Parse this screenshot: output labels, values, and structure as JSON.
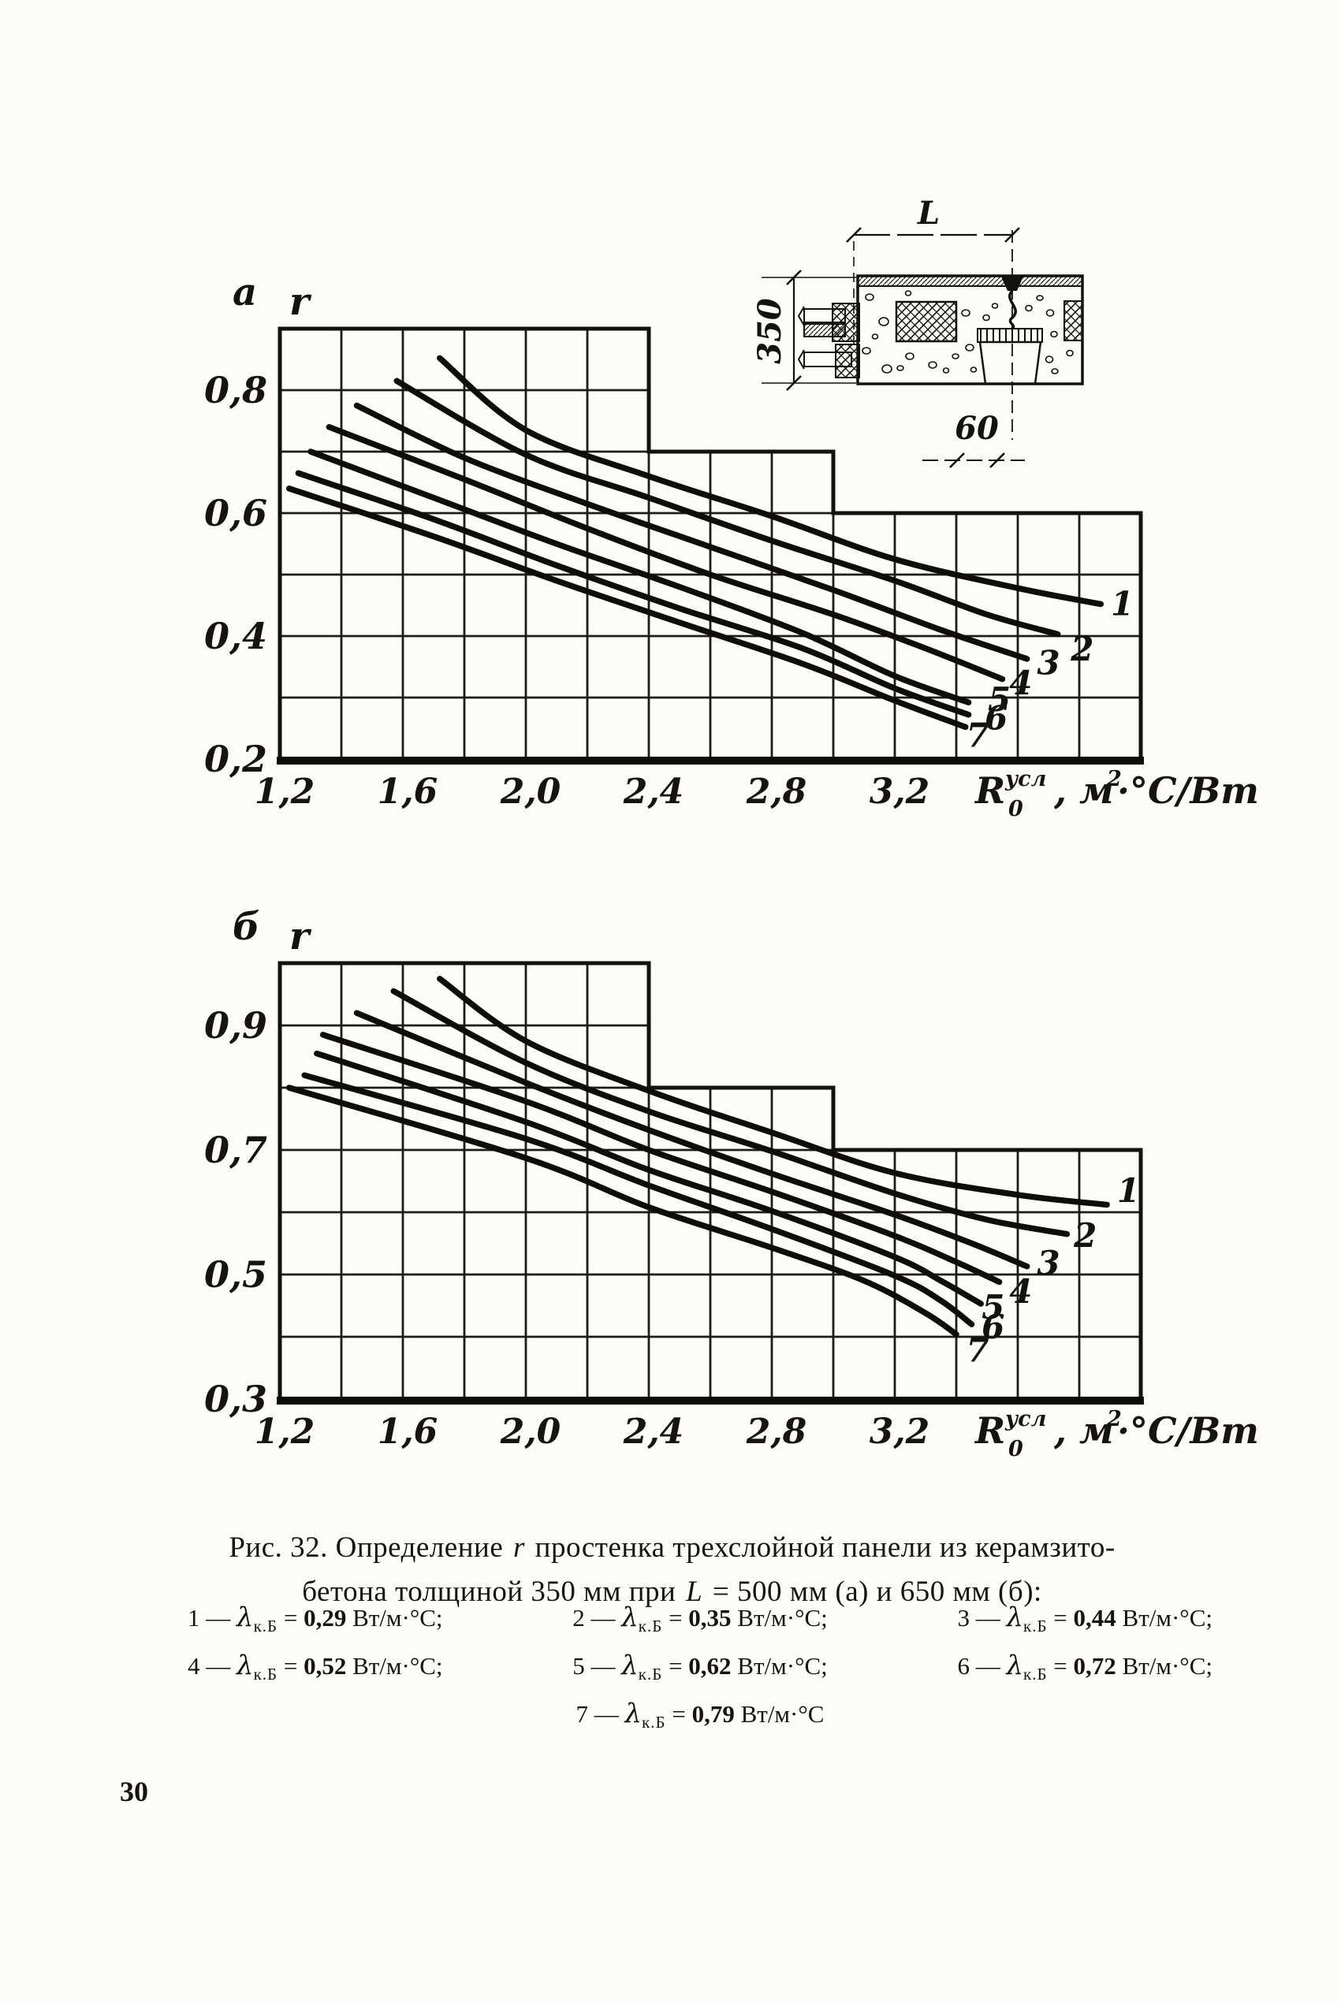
{
  "page_number": "30",
  "figure_caption": {
    "line1_prefix": "Рис. 32. Определение ",
    "line1_var": "r",
    "line1_suffix": " простенка трехслойной панели из керамзито-",
    "line2_prefix": "бетона толщиной 350 мм при ",
    "line2_var": "L",
    "line2_suffix": " = 500 мм (а) и 650 мм (б):"
  },
  "legend": {
    "lambda_symbol": "λ",
    "lambda_subscript": "к.Б",
    "equals": " = ",
    "dash": " — ",
    "items": [
      {
        "num": "1",
        "value": "0,29",
        "unit": "Вт/м·°С;"
      },
      {
        "num": "2",
        "value": "0,35",
        "unit": "Вт/м·°С;"
      },
      {
        "num": "3",
        "value": "0,44",
        "unit": "Вт/м·°С;"
      },
      {
        "num": "4",
        "value": "0,52",
        "unit": "Вт/м·°С;"
      },
      {
        "num": "5",
        "value": "0,62",
        "unit": "Вт/м·°С;"
      },
      {
        "num": "6",
        "value": "0,72",
        "unit": "Вт/м·°С;"
      },
      {
        "num": "7",
        "value": "0,79",
        "unit": "Вт/м·°С"
      }
    ],
    "rows": [
      [
        0,
        1,
        2
      ],
      [
        3,
        4,
        5
      ],
      [
        6
      ]
    ]
  },
  "detail_diagram": {
    "labels": {
      "span": "L",
      "height": "350",
      "joint_width": "60"
    }
  },
  "x_axis_title": {
    "symbol": "R",
    "sup": "усл",
    "sub": "0",
    "tail": ", м",
    "tail_sup": "2",
    "tail_end": "·°С/Вт",
    "plain": "R0усл, м2·°С/Вт"
  },
  "chart_data": [
    {
      "type": "line",
      "panel_label": "а",
      "ylabel": "r",
      "xlabel": "R0усл, м2·°С/Вт",
      "x_range": [
        1.2,
        4.0
      ],
      "x_grid_step": 0.2,
      "y_bottom": 0.2,
      "y_grid_step": 0.1,
      "outline_segments": [
        {
          "x_from": 1.2,
          "x_to": 2.4,
          "y_top": 0.9
        },
        {
          "x_from": 2.4,
          "x_to": 3.0,
          "y_top": 0.7
        },
        {
          "x_from": 3.0,
          "x_to": 4.0,
          "y_top": 0.6
        }
      ],
      "x_ticks": [
        {
          "v": 1.2,
          "label": "1,2"
        },
        {
          "v": 1.6,
          "label": "1,6"
        },
        {
          "v": 2.0,
          "label": "2,0"
        },
        {
          "v": 2.4,
          "label": "2,4"
        },
        {
          "v": 2.8,
          "label": "2,8"
        },
        {
          "v": 3.2,
          "label": "3,2"
        }
      ],
      "y_ticks": [
        {
          "v": 0.8,
          "label": "0,8"
        },
        {
          "v": 0.6,
          "label": "0,6"
        },
        {
          "v": 0.4,
          "label": "0,4"
        },
        {
          "v": 0.2,
          "label": "0,2"
        }
      ],
      "series": [
        {
          "name": "1",
          "label_pos": [
            3.94,
            0.452
          ],
          "points": [
            [
              1.72,
              0.852
            ],
            [
              2.0,
              0.735
            ],
            [
              2.4,
              0.66
            ],
            [
              2.8,
              0.595
            ],
            [
              3.2,
              0.525
            ],
            [
              3.6,
              0.478
            ],
            [
              3.87,
              0.452
            ]
          ]
        },
        {
          "name": "2",
          "label_pos": [
            3.81,
            0.378
          ],
          "points": [
            [
              1.58,
              0.815
            ],
            [
              2.0,
              0.695
            ],
            [
              2.4,
              0.625
            ],
            [
              2.8,
              0.555
            ],
            [
              3.2,
              0.49
            ],
            [
              3.5,
              0.435
            ],
            [
              3.73,
              0.403
            ]
          ]
        },
        {
          "name": "3",
          "label_pos": [
            3.7,
            0.356
          ],
          "points": [
            [
              1.45,
              0.775
            ],
            [
              1.8,
              0.69
            ],
            [
              2.2,
              0.615
            ],
            [
              2.6,
              0.545
            ],
            [
              3.0,
              0.475
            ],
            [
              3.35,
              0.41
            ],
            [
              3.63,
              0.363
            ]
          ]
        },
        {
          "name": "4",
          "label_pos": [
            3.61,
            0.323
          ],
          "points": [
            [
              1.36,
              0.74
            ],
            [
              1.8,
              0.655
            ],
            [
              2.2,
              0.575
            ],
            [
              2.6,
              0.5
            ],
            [
              3.0,
              0.435
            ],
            [
              3.3,
              0.38
            ],
            [
              3.55,
              0.33
            ]
          ]
        },
        {
          "name": "5",
          "label_pos": [
            3.54,
            0.296
          ],
          "points": [
            [
              1.3,
              0.7
            ],
            [
              1.7,
              0.625
            ],
            [
              2.1,
              0.55
            ],
            [
              2.5,
              0.48
            ],
            [
              2.9,
              0.405
            ],
            [
              3.2,
              0.335
            ],
            [
              3.44,
              0.292
            ]
          ]
        },
        {
          "name": "6",
          "label_pos": [
            3.53,
            0.266
          ],
          "points": [
            [
              1.26,
              0.665
            ],
            [
              1.7,
              0.59
            ],
            [
              2.1,
              0.515
            ],
            [
              2.5,
              0.445
            ],
            [
              2.9,
              0.38
            ],
            [
              3.2,
              0.315
            ],
            [
              3.44,
              0.272
            ]
          ]
        },
        {
          "name": "7",
          "label_pos": [
            3.47,
            0.238
          ],
          "points": [
            [
              1.23,
              0.64
            ],
            [
              1.7,
              0.562
            ],
            [
              2.1,
              0.49
            ],
            [
              2.5,
              0.422
            ],
            [
              2.9,
              0.355
            ],
            [
              3.2,
              0.295
            ],
            [
              3.43,
              0.252
            ]
          ]
        }
      ]
    },
    {
      "type": "line",
      "panel_label": "б",
      "ylabel": "r",
      "xlabel": "R0усл, м2·°С/Вт",
      "x_range": [
        1.2,
        4.0
      ],
      "x_grid_step": 0.2,
      "y_bottom": 0.3,
      "y_grid_step": 0.1,
      "outline_segments": [
        {
          "x_from": 1.2,
          "x_to": 2.4,
          "y_top": 1.0
        },
        {
          "x_from": 2.4,
          "x_to": 3.0,
          "y_top": 0.8
        },
        {
          "x_from": 3.0,
          "x_to": 4.0,
          "y_top": 0.7
        }
      ],
      "x_ticks": [
        {
          "v": 1.2,
          "label": "1,2"
        },
        {
          "v": 1.6,
          "label": "1,6"
        },
        {
          "v": 2.0,
          "label": "2,0"
        },
        {
          "v": 2.4,
          "label": "2,4"
        },
        {
          "v": 2.8,
          "label": "2,8"
        },
        {
          "v": 3.2,
          "label": "3,2"
        }
      ],
      "y_ticks": [
        {
          "v": 0.9,
          "label": "0,9"
        },
        {
          "v": 0.7,
          "label": "0,7"
        },
        {
          "v": 0.5,
          "label": "0,5"
        },
        {
          "v": 0.3,
          "label": "0,3"
        }
      ],
      "series": [
        {
          "name": "1",
          "label_pos": [
            3.96,
            0.634
          ],
          "points": [
            [
              1.72,
              0.975
            ],
            [
              2.0,
              0.875
            ],
            [
              2.4,
              0.795
            ],
            [
              2.8,
              0.728
            ],
            [
              3.2,
              0.663
            ],
            [
              3.6,
              0.628
            ],
            [
              3.89,
              0.612
            ]
          ]
        },
        {
          "name": "2",
          "label_pos": [
            3.82,
            0.562
          ],
          "points": [
            [
              1.57,
              0.955
            ],
            [
              2.0,
              0.84
            ],
            [
              2.4,
              0.762
            ],
            [
              2.8,
              0.698
            ],
            [
              3.2,
              0.63
            ],
            [
              3.5,
              0.588
            ],
            [
              3.76,
              0.565
            ]
          ]
        },
        {
          "name": "3",
          "label_pos": [
            3.7,
            0.518
          ],
          "points": [
            [
              1.45,
              0.92
            ],
            [
              2.0,
              0.808
            ],
            [
              2.4,
              0.732
            ],
            [
              2.8,
              0.662
            ],
            [
              3.2,
              0.596
            ],
            [
              3.45,
              0.55
            ],
            [
              3.63,
              0.513
            ]
          ]
        },
        {
          "name": "4",
          "label_pos": [
            3.61,
            0.472
          ],
          "points": [
            [
              1.34,
              0.885
            ],
            [
              2.0,
              0.778
            ],
            [
              2.4,
              0.7
            ],
            [
              2.8,
              0.633
            ],
            [
              3.2,
              0.562
            ],
            [
              3.4,
              0.52
            ],
            [
              3.54,
              0.488
            ]
          ]
        },
        {
          "name": "5",
          "label_pos": [
            3.52,
            0.447
          ],
          "points": [
            [
              1.32,
              0.855
            ],
            [
              2.0,
              0.745
            ],
            [
              2.4,
              0.668
            ],
            [
              2.8,
              0.602
            ],
            [
              3.2,
              0.528
            ],
            [
              3.35,
              0.49
            ],
            [
              3.48,
              0.453
            ]
          ]
        },
        {
          "name": "6",
          "label_pos": [
            3.52,
            0.415
          ],
          "points": [
            [
              1.28,
              0.82
            ],
            [
              2.0,
              0.718
            ],
            [
              2.4,
              0.643
            ],
            [
              2.8,
              0.573
            ],
            [
              3.2,
              0.498
            ],
            [
              3.35,
              0.458
            ],
            [
              3.45,
              0.42
            ]
          ]
        },
        {
          "name": "7",
          "label_pos": [
            3.47,
            0.378
          ],
          "points": [
            [
              1.23,
              0.8
            ],
            [
              2.0,
              0.687
            ],
            [
              2.4,
              0.608
            ],
            [
              2.8,
              0.543
            ],
            [
              3.1,
              0.49
            ],
            [
              3.3,
              0.438
            ],
            [
              3.4,
              0.404
            ]
          ]
        }
      ]
    }
  ]
}
